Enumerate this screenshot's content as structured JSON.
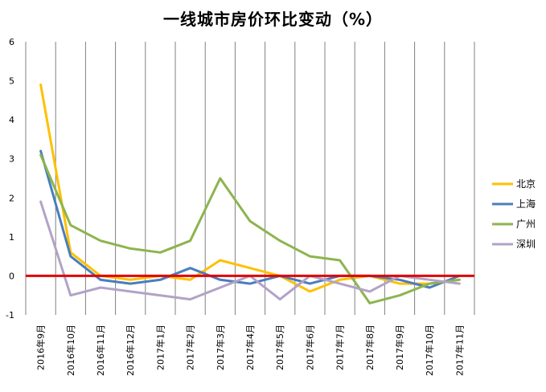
{
  "chart_data": {
    "type": "line",
    "title": "一线城市房价环比变动（%）",
    "categories": [
      "2016年9月",
      "2016年10月",
      "2016年11月",
      "2016年12月",
      "2017年1月",
      "2017年2月",
      "2017年3月",
      "2017年4月",
      "2017年5月",
      "2017年6月",
      "2017年7月",
      "2017年8月",
      "2017年9月",
      "2017年10月",
      "2017年11月"
    ],
    "ylim": [
      -1,
      6
    ],
    "yticks": [
      "-1",
      "0",
      "1",
      "2",
      "3",
      "4",
      "5",
      "6"
    ],
    "grid": "vertical",
    "zero_line_color": "#e00000",
    "legend_position": "right",
    "series": [
      {
        "name": "北京",
        "color": "#ffc000",
        "values": [
          4.9,
          0.6,
          0.0,
          -0.1,
          0.0,
          -0.1,
          0.4,
          0.2,
          0.0,
          -0.4,
          -0.1,
          0.0,
          -0.2,
          -0.2,
          -0.1
        ]
      },
      {
        "name": "上海",
        "color": "#4a7ebb",
        "values": [
          3.2,
          0.5,
          -0.1,
          -0.2,
          -0.1,
          0.2,
          -0.1,
          -0.2,
          0.0,
          -0.2,
          0.0,
          0.0,
          -0.1,
          -0.3,
          0.0
        ]
      },
      {
        "name": "广州",
        "color": "#8db44f",
        "values": [
          3.1,
          1.3,
          0.9,
          0.7,
          0.6,
          0.9,
          2.5,
          1.4,
          0.9,
          0.5,
          0.4,
          -0.7,
          -0.5,
          -0.2,
          -0.1
        ]
      },
      {
        "name": "深圳",
        "color": "#b3a2c7",
        "values": [
          1.9,
          -0.5,
          -0.3,
          -0.4,
          -0.5,
          -0.6,
          -0.3,
          0.0,
          -0.6,
          0.0,
          -0.2,
          -0.4,
          0.0,
          -0.1,
          -0.2
        ]
      }
    ]
  }
}
